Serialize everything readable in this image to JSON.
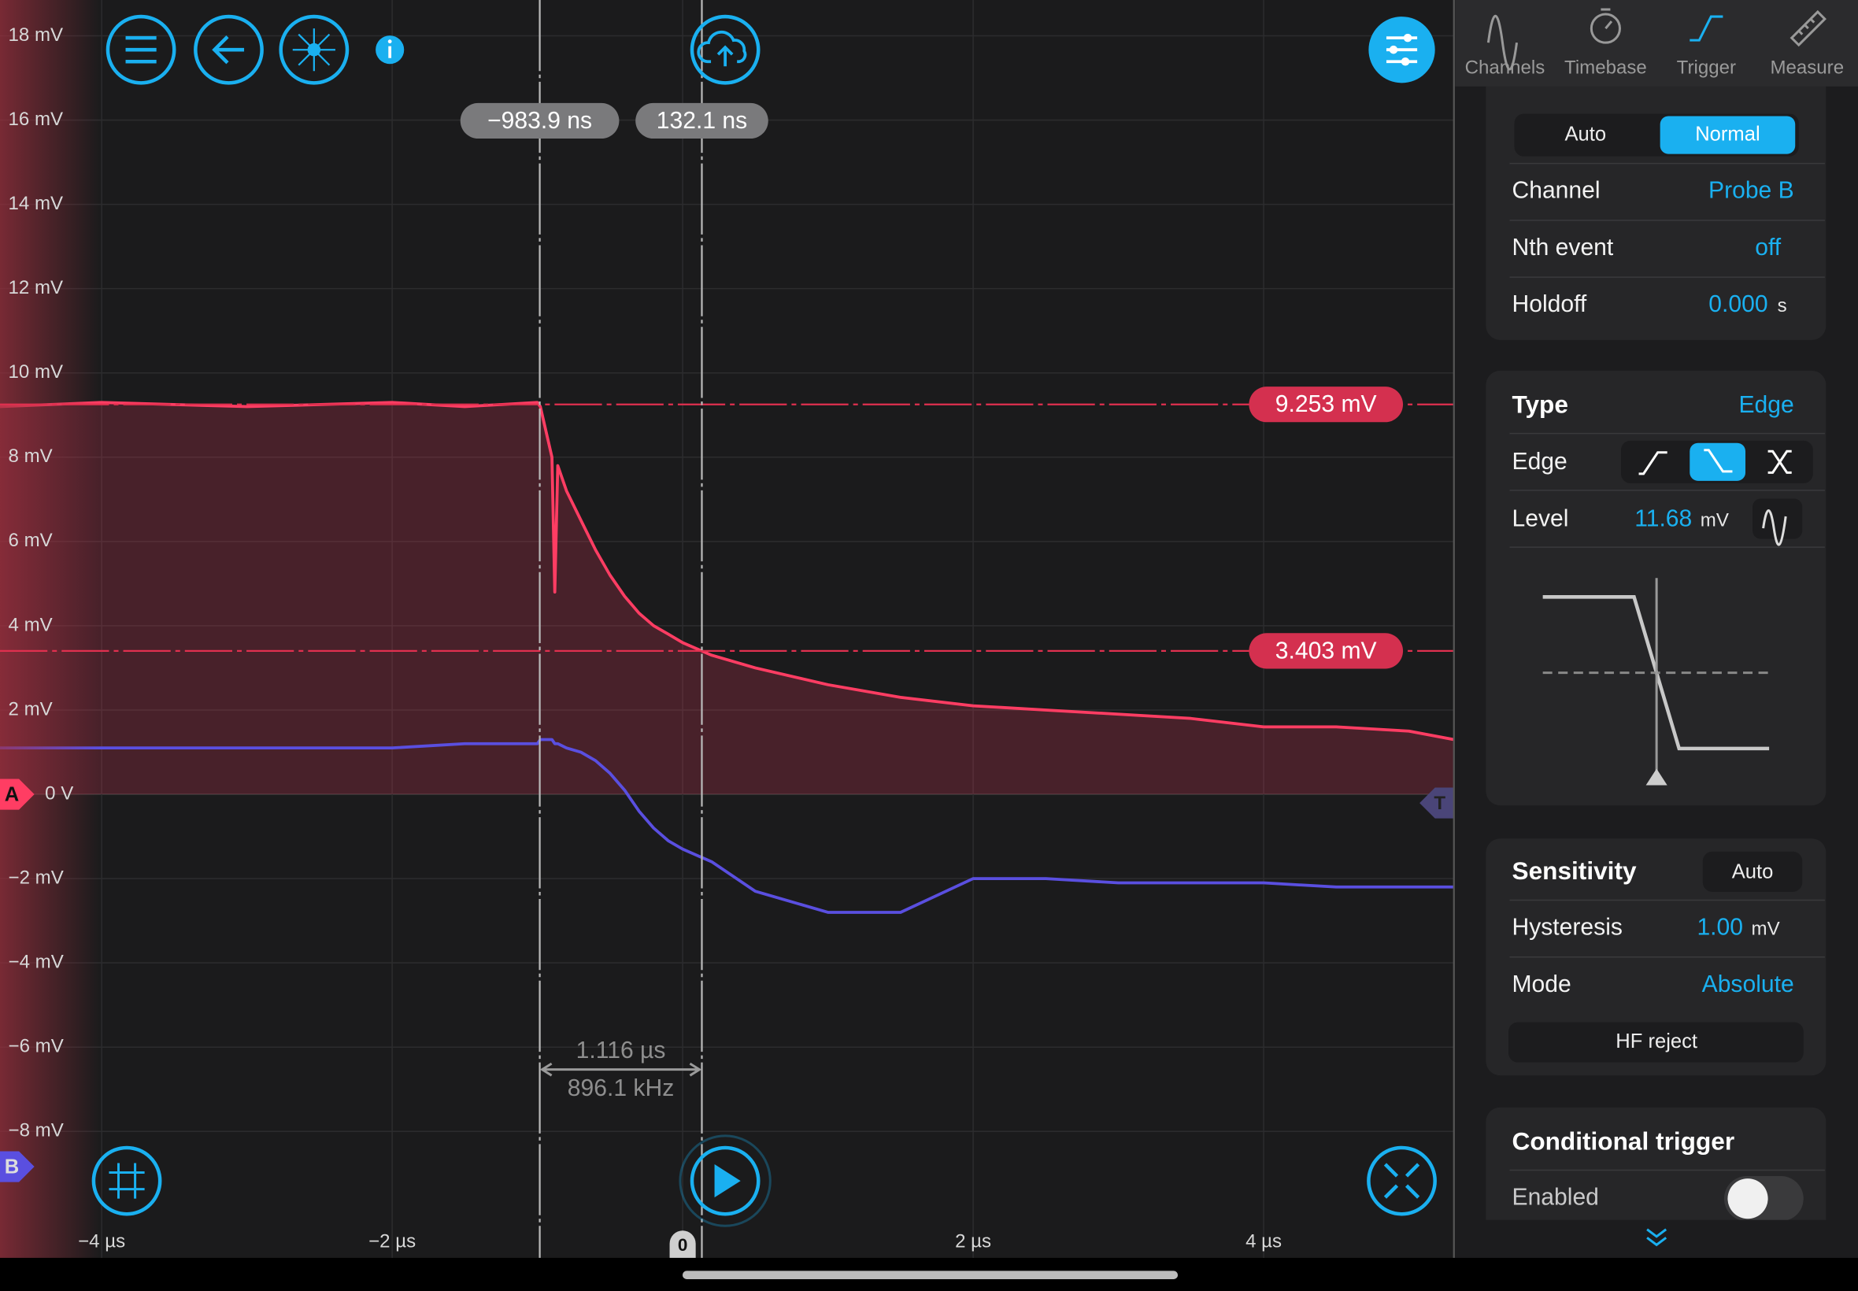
{
  "toolbar": {
    "tabs": [
      "Channels",
      "Timebase",
      "Trigger",
      "Measure"
    ],
    "active_tab": 2
  },
  "chart_data": {
    "type": "line",
    "x": [
      -4.7,
      -4,
      -3,
      -2,
      -1.5,
      -1,
      -0.98,
      -0.9,
      -0.88,
      -0.86,
      -0.8,
      -0.7,
      -0.6,
      -0.5,
      -0.4,
      -0.3,
      -0.2,
      -0.1,
      0,
      0.2,
      0.5,
      1,
      1.5,
      2,
      2.5,
      3,
      3.5,
      4,
      4.5,
      5,
      5.31
    ],
    "series": [
      {
        "name": "A",
        "color": "#ff3d63",
        "values": [
          9.2,
          9.3,
          9.2,
          9.3,
          9.2,
          9.3,
          9.2,
          8.0,
          4.8,
          7.8,
          7.2,
          6.5,
          5.8,
          5.2,
          4.7,
          4.3,
          4.0,
          3.8,
          3.6,
          3.3,
          3.0,
          2.6,
          2.3,
          2.1,
          2.0,
          1.9,
          1.8,
          1.6,
          1.6,
          1.5,
          1.3
        ]
      },
      {
        "name": "B",
        "color": "#5a4fe0",
        "values": [
          1.1,
          1.1,
          1.1,
          1.1,
          1.2,
          1.2,
          1.3,
          1.3,
          1.2,
          1.2,
          1.1,
          1.0,
          0.8,
          0.5,
          0.1,
          -0.4,
          -0.8,
          -1.1,
          -1.3,
          -1.6,
          -2.3,
          -2.8,
          -2.8,
          -2.0,
          -2.0,
          -2.1,
          -2.1,
          -2.1,
          -2.2,
          -2.2,
          -2.2
        ]
      }
    ],
    "xlim": [
      -4.7,
      5.31
    ],
    "ylim": [
      -11.0,
      18.85
    ],
    "xticks": [
      {
        "value": -4,
        "label": "−4 µs"
      },
      {
        "value": -2,
        "label": "−2 µs"
      },
      {
        "value": 0,
        "label": "0"
      },
      {
        "value": 2,
        "label": "2 µs"
      },
      {
        "value": 4,
        "label": "4 µs"
      }
    ],
    "yticks": [
      {
        "value": 18,
        "label": "18 mV"
      },
      {
        "value": 16,
        "label": "16 mV"
      },
      {
        "value": 14,
        "label": "14 mV"
      },
      {
        "value": 12,
        "label": "12 mV"
      },
      {
        "value": 10,
        "label": "10 mV"
      },
      {
        "value": 8,
        "label": "8 mV"
      },
      {
        "value": 6,
        "label": "6 mV"
      },
      {
        "value": 4,
        "label": "4 mV"
      },
      {
        "value": 2,
        "label": "2 mV"
      },
      {
        "value": 0,
        "label": "0 V"
      },
      {
        "value": -2,
        "label": "−2 mV"
      },
      {
        "value": -4,
        "label": "−4 mV"
      },
      {
        "value": -6,
        "label": "−6 mV"
      },
      {
        "value": -8,
        "label": "−8 mV"
      }
    ],
    "grid": true,
    "trigger_marker": "T",
    "x_cursors": [
      {
        "value": -0.9839,
        "label": "−983.9 ns"
      },
      {
        "value": 0.1321,
        "label": "132.1 ns"
      }
    ],
    "y_cursors": [
      {
        "value": 9.253,
        "label": "9.253 mV"
      },
      {
        "value": 3.403,
        "label": "3.403 mV"
      }
    ],
    "cursor_delta": {
      "time": "1.116 µs",
      "frequency": "896.1 kHz"
    }
  },
  "panel": {
    "mode": {
      "options": [
        "Auto",
        "Normal"
      ],
      "active": 1
    },
    "channel": {
      "label": "Channel",
      "value": "Probe B"
    },
    "nth_event": {
      "label": "Nth event",
      "value": "off"
    },
    "holdoff": {
      "label": "Holdoff",
      "value": "0.000",
      "unit": "s"
    },
    "type": {
      "label": "Type",
      "value": "Edge"
    },
    "edge": {
      "label": "Edge"
    },
    "level": {
      "label": "Level",
      "value": "11.68",
      "unit": "mV"
    },
    "sensitivity": {
      "label": "Sensitivity",
      "value": "Auto"
    },
    "hysteresis": {
      "label": "Hysteresis",
      "value": "1.00",
      "unit": "mV"
    },
    "mode_row": {
      "label": "Mode",
      "value": "Absolute"
    },
    "hf_reject": "HF reject",
    "conditional": {
      "label": "Conditional trigger",
      "enabled": "Enabled"
    }
  }
}
